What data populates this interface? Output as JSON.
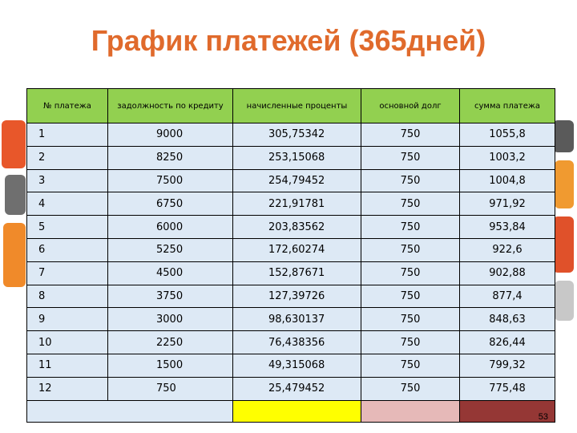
{
  "slide": {
    "title": "График платежей (365дней)",
    "page_number": "53"
  },
  "table": {
    "headers": [
      "№ платежа",
      "задолжность по кредиту",
      "начисленные проценты",
      "основной долг",
      "сумма платежа"
    ],
    "rows": [
      [
        "1",
        "9000",
        "305,75342",
        "750",
        "1055,8"
      ],
      [
        "2",
        "8250",
        "253,15068",
        "750",
        "1003,2"
      ],
      [
        "3",
        "7500",
        "254,79452",
        "750",
        "1004,8"
      ],
      [
        "4",
        "6750",
        "221,91781",
        "750",
        "971,92"
      ],
      [
        "5",
        "6000",
        "203,83562",
        "750",
        "953,84"
      ],
      [
        "6",
        "5250",
        "172,60274",
        "750",
        "922,6"
      ],
      [
        "7",
        "4500",
        "152,87671",
        "750",
        "902,88"
      ],
      [
        "8",
        "3750",
        "127,39726",
        "750",
        "877,4"
      ],
      [
        "9",
        "3000",
        "98,630137",
        "750",
        "848,63"
      ],
      [
        "10",
        "2250",
        "76,438356",
        "750",
        "826,44"
      ],
      [
        "11",
        "1500",
        "49,315068",
        "750",
        "799,32"
      ],
      [
        "12",
        "750",
        "25,479452",
        "750",
        "775,48"
      ]
    ]
  },
  "colors": {
    "title": "#e06a2c",
    "header_bg": "#92d050",
    "cell_bg": "#dde9f5",
    "footer_yellow": "#ffff00",
    "footer_pink": "#e6b9b8",
    "footer_dark": "#953735"
  }
}
